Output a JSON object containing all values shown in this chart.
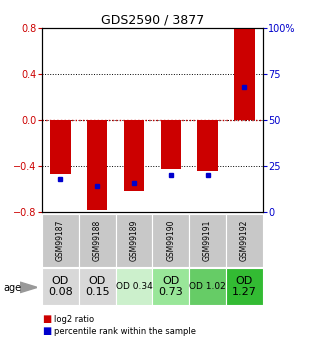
{
  "title": "GDS2590 / 3877",
  "samples": [
    "GSM99187",
    "GSM99188",
    "GSM99189",
    "GSM99190",
    "GSM99191",
    "GSM99192"
  ],
  "log2_ratios": [
    -0.47,
    -0.78,
    -0.62,
    -0.43,
    -0.44,
    0.8
  ],
  "percentile_ranks": [
    18,
    14,
    16,
    20,
    20,
    68
  ],
  "ylim": [
    -0.8,
    0.8
  ],
  "yticks_left": [
    -0.8,
    -0.4,
    0,
    0.4,
    0.8
  ],
  "yticks_right": [
    0,
    25,
    50,
    75,
    100
  ],
  "bar_color": "#cc0000",
  "dot_color": "#0000cc",
  "zero_line_color": "#cc0000",
  "bar_width": 0.55,
  "age_labels": [
    "OD\n0.08",
    "OD\n0.15",
    "OD 0.34",
    "OD\n0.73",
    "OD 1.02",
    "OD\n1.27"
  ],
  "age_font_sizes": [
    8,
    8,
    6.5,
    8,
    6.5,
    8
  ],
  "age_bg_colors": [
    "#d8d8d8",
    "#d8d8d8",
    "#ccf0cc",
    "#99e699",
    "#66cc66",
    "#33bb33"
  ],
  "sample_bg_color": "#c8c8c8",
  "legend_items": [
    "log2 ratio",
    "percentile rank within the sample"
  ]
}
